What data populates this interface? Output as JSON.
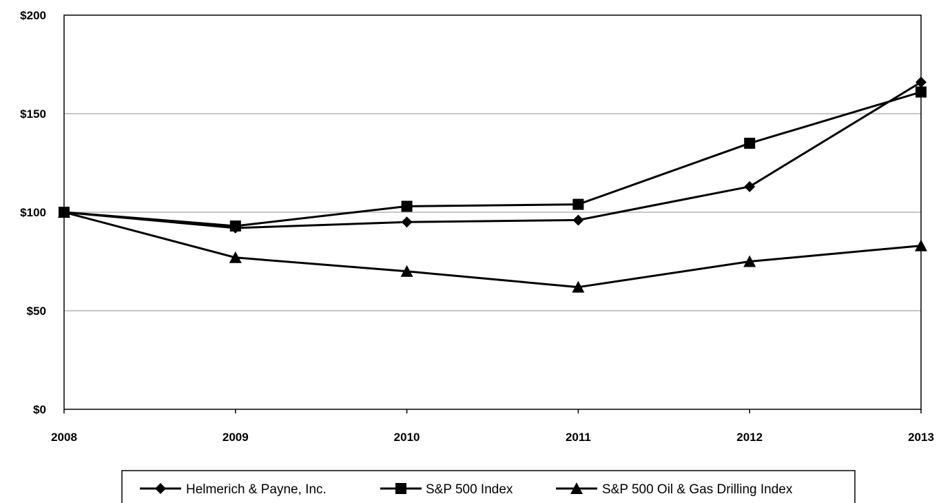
{
  "chart_data": {
    "type": "line",
    "title": "",
    "xlabel": "",
    "ylabel": "",
    "x": [
      "2008",
      "2009",
      "2010",
      "2011",
      "2012",
      "2013"
    ],
    "ylim": [
      0,
      200
    ],
    "yticks": [
      0,
      50,
      100,
      150,
      200
    ],
    "ytick_labels": [
      "$0",
      "$50",
      "$100",
      "$150",
      "$200"
    ],
    "grid": "horizontal",
    "legend_position": "bottom",
    "series": [
      {
        "name": "Helmerich & Payne, Inc.",
        "marker": "diamond",
        "color": "#000000",
        "values": [
          100,
          92,
          95,
          96,
          113,
          166
        ]
      },
      {
        "name": "S&P 500 Index",
        "marker": "square",
        "color": "#000000",
        "values": [
          100,
          93,
          103,
          104,
          135,
          161
        ]
      },
      {
        "name": "S&P 500 Oil & Gas Drilling Index",
        "marker": "triangle",
        "color": "#000000",
        "values": [
          100,
          77,
          70,
          62,
          75,
          83
        ]
      }
    ]
  }
}
